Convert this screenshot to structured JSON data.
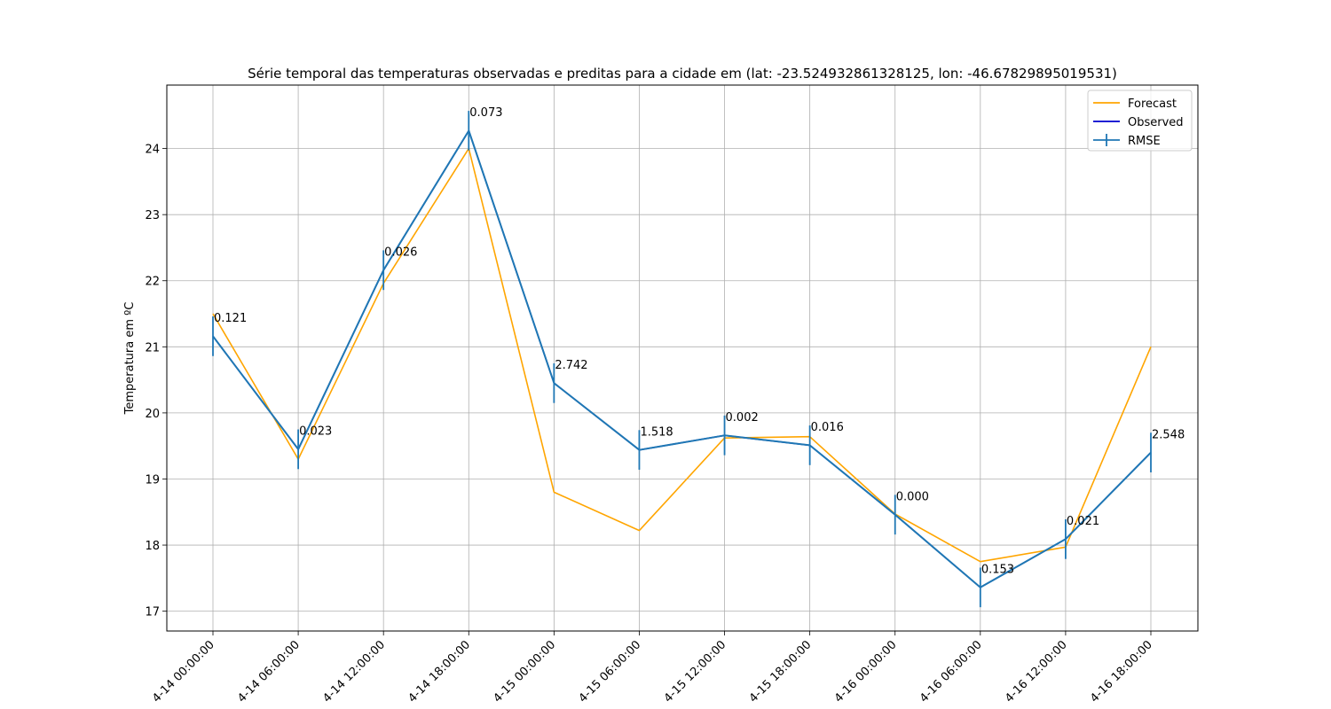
{
  "chart_data": {
    "type": "line",
    "title": "Série temporal das temperaturas observadas e preditas para a cidade em (lat: -23.524932861328125, lon: -46.67829895019531)",
    "xlabel": "",
    "ylabel": "Temperatura em ºC",
    "x": [
      "4-14 00:00:00",
      "4-14 06:00:00",
      "4-14 12:00:00",
      "4-14 18:00:00",
      "4-15 00:00:00",
      "4-15 06:00:00",
      "4-15 12:00:00",
      "4-15 18:00:00",
      "4-16 00:00:00",
      "4-16 06:00:00",
      "4-16 12:00:00",
      "4-16 18:00:00"
    ],
    "ylim": [
      16.7,
      24.96
    ],
    "yticks": [
      17,
      18,
      19,
      20,
      21,
      22,
      23,
      24
    ],
    "grid": true,
    "legend_position": "top-right",
    "series": [
      {
        "name": "Forecast",
        "color": "#ffa500",
        "values": [
          21.5,
          19.3,
          21.96,
          24.0,
          18.8,
          18.22,
          19.62,
          19.64,
          18.47,
          17.75,
          17.97,
          21.0
        ]
      },
      {
        "name": "Observed",
        "color": "#0000cd",
        "values": [
          21.16,
          19.45,
          22.16,
          24.27,
          20.45,
          19.44,
          19.66,
          19.51,
          18.46,
          17.36,
          18.09,
          19.4
        ]
      },
      {
        "name": "RMSE",
        "color": "#1f77b4",
        "values": [
          21.16,
          19.45,
          22.16,
          24.27,
          20.45,
          19.44,
          19.66,
          19.51,
          18.46,
          17.36,
          18.09,
          19.4
        ],
        "error": [
          0.3,
          0.3,
          0.3,
          0.3,
          0.3,
          0.3,
          0.3,
          0.3,
          0.3,
          0.3,
          0.3,
          0.3
        ]
      }
    ],
    "annotations": [
      "0.121",
      "0.023",
      "0.026",
      "0.073",
      "2.742",
      "1.518",
      "0.002",
      "0.016",
      "0.000",
      "0.153",
      "0.021",
      "2.548"
    ]
  }
}
